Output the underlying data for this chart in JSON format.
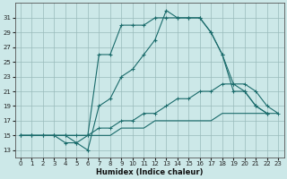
{
  "xlabel": "Humidex (Indice chaleur)",
  "bg_color": "#cce8e8",
  "grid_color": "#99bbbb",
  "line_color": "#1a6b6b",
  "xlim": [
    -0.5,
    23.5
  ],
  "ylim": [
    12,
    33
  ],
  "xticks": [
    0,
    1,
    2,
    3,
    4,
    5,
    6,
    7,
    8,
    9,
    10,
    11,
    12,
    13,
    14,
    15,
    16,
    17,
    18,
    19,
    20,
    21,
    22,
    23
  ],
  "yticks": [
    13,
    15,
    17,
    19,
    21,
    23,
    25,
    27,
    29,
    31
  ],
  "line1_x": [
    0,
    1,
    2,
    3,
    4,
    5,
    6,
    7,
    8,
    9,
    10,
    11,
    12,
    13,
    14,
    15,
    16,
    17,
    18,
    19,
    20,
    21,
    22
  ],
  "line1_y": [
    15,
    15,
    15,
    15,
    15,
    14,
    13,
    19,
    20,
    23,
    24,
    26,
    28,
    32,
    31,
    31,
    31,
    29,
    26,
    21,
    21,
    19,
    18
  ],
  "line2_x": [
    0,
    1,
    2,
    3,
    4,
    5,
    6,
    7,
    8,
    9,
    10,
    11,
    12,
    13,
    14,
    15,
    16,
    17,
    18,
    19,
    20,
    21,
    22
  ],
  "line2_y": [
    15,
    15,
    15,
    15,
    14,
    14,
    15,
    26,
    26,
    30,
    30,
    30,
    31,
    31,
    31,
    31,
    31,
    29,
    26,
    22,
    21,
    19,
    18
  ],
  "line3_x": [
    0,
    1,
    2,
    3,
    4,
    5,
    6,
    7,
    8,
    9,
    10,
    11,
    12,
    13,
    14,
    15,
    16,
    17,
    18,
    19,
    20,
    21,
    22,
    23
  ],
  "line3_y": [
    15,
    15,
    15,
    15,
    15,
    15,
    15,
    16,
    16,
    17,
    17,
    18,
    18,
    19,
    20,
    20,
    21,
    21,
    22,
    22,
    22,
    21,
    19,
    18
  ],
  "line4_x": [
    0,
    1,
    2,
    3,
    4,
    5,
    6,
    7,
    8,
    9,
    10,
    11,
    12,
    13,
    14,
    15,
    16,
    17,
    18,
    19,
    20,
    21,
    22,
    23
  ],
  "line4_y": [
    15,
    15,
    15,
    15,
    15,
    15,
    15,
    15,
    15,
    16,
    16,
    16,
    17,
    17,
    17,
    17,
    17,
    17,
    18,
    18,
    18,
    18,
    18,
    18
  ]
}
